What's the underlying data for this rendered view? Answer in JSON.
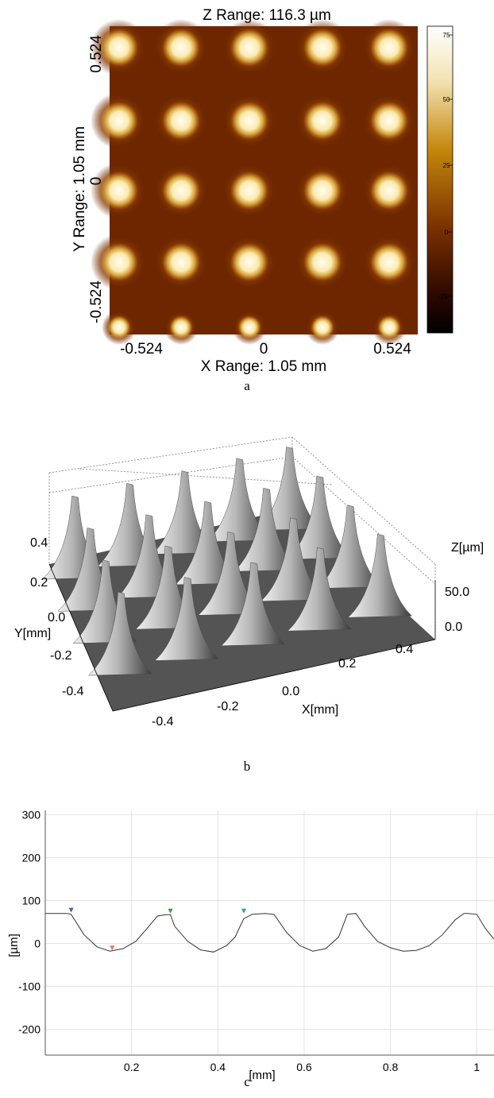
{
  "figure": {
    "panel_a": {
      "label": "a",
      "title": "Z Range:  116.3 µm",
      "xlabel": "X Range:  1.05 mm",
      "ylabel": "Y Range:  1.05 mm",
      "x_ticks": [
        "-0.524",
        "0",
        "0.524"
      ],
      "y_ticks": [
        "0.524",
        "0",
        "-0.524"
      ],
      "colorbar_ticks": [
        "75",
        "50",
        "25",
        "0",
        "-25"
      ],
      "colors": {
        "dark": "#180800",
        "mid": "#8a3a00",
        "gold": "#d9a23a",
        "light": "#fffbe8"
      }
    },
    "panel_b": {
      "label": "b",
      "y_axis_label": "Y[mm]",
      "x_axis_label": "X[mm]",
      "z_axis_label": "Z[µm]",
      "y_ticks": [
        "0.4",
        "0.2",
        "0.0",
        "-0.2",
        "-0.4"
      ],
      "x_ticks": [
        "-0.4",
        "-0.2",
        "0.0",
        "0.2",
        "0.4"
      ],
      "z_ticks": [
        "50.0",
        "0.0"
      ]
    },
    "panel_c": {
      "label": "c",
      "xlabel": "[mm]",
      "ylabel": "[µm]",
      "x_ticks": [
        "0.2",
        "0.4",
        "0.6",
        "0.8",
        "1"
      ],
      "y_ticks": [
        "300",
        "200",
        "100",
        "0",
        "-100",
        "-200"
      ],
      "marker_colors": [
        "#5a5aa8",
        "#e07070",
        "#30a030",
        "#20a0b0"
      ]
    }
  },
  "chart_data": {
    "type": "line",
    "title": "",
    "xlabel": "[mm]",
    "ylabel": "[µm]",
    "xlim": [
      0,
      1.04
    ],
    "ylim": [
      -260,
      310
    ],
    "grid": true,
    "series": [
      {
        "x": [
          0.0,
          0.05,
          0.06,
          0.09,
          0.12,
          0.15,
          0.18,
          0.21,
          0.24,
          0.26,
          0.28,
          0.29,
          0.3,
          0.33,
          0.36,
          0.39,
          0.42,
          0.44,
          0.46,
          0.48,
          0.51,
          0.53,
          0.56,
          0.59,
          0.62,
          0.65,
          0.68,
          0.7,
          0.72,
          0.74,
          0.77,
          0.8,
          0.83,
          0.86,
          0.89,
          0.92,
          0.95,
          0.97,
          0.98,
          1.0,
          1.02,
          1.04
        ],
        "y": [
          70,
          70,
          68,
          20,
          -8,
          -18,
          -12,
          5,
          40,
          64,
          67,
          67,
          40,
          5,
          -15,
          -20,
          -5,
          15,
          58,
          68,
          70,
          68,
          25,
          -5,
          -18,
          -12,
          15,
          68,
          70,
          40,
          5,
          -10,
          -18,
          -16,
          -5,
          20,
          55,
          70,
          70,
          68,
          35,
          10
        ]
      }
    ],
    "markers": [
      {
        "x": 0.06,
        "y": 70
      },
      {
        "x": 0.155,
        "y": -18
      },
      {
        "x": 0.29,
        "y": 68
      },
      {
        "x": 0.46,
        "y": 68
      }
    ]
  }
}
